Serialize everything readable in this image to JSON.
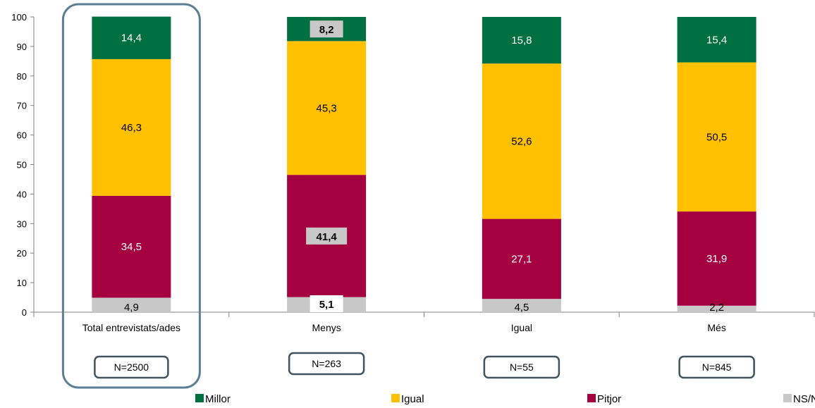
{
  "chart_data": {
    "type": "bar",
    "stacked": true,
    "categories": [
      "Total entrevistats/ades",
      "Menys",
      "Igual",
      "Més"
    ],
    "series": [
      {
        "name": "NS/NC",
        "color": "#c8c8c8",
        "values": [
          4.9,
          5.1,
          4.5,
          2.2
        ],
        "labels": [
          "4,9",
          "5,1",
          "4,5",
          "2,2"
        ]
      },
      {
        "name": "Pitjor",
        "color": "#a50040",
        "values": [
          34.5,
          41.4,
          27.1,
          31.9
        ],
        "labels": [
          "34,5",
          "41,4",
          "27,1",
          "31,9"
        ]
      },
      {
        "name": "Igual",
        "color": "#ffc000",
        "values": [
          46.3,
          45.3,
          52.6,
          50.5
        ],
        "labels": [
          "46,3",
          "45,3",
          "52,6",
          "50,5"
        ]
      },
      {
        "name": "Millor",
        "color": "#007040",
        "values": [
          14.4,
          8.2,
          15.8,
          15.4
        ],
        "labels": [
          "14,4",
          "8,2",
          "15,8",
          "15,4"
        ]
      }
    ],
    "highlighted_labels": [
      {
        "category": 1,
        "series": "Millor"
      },
      {
        "category": 1,
        "series": "Pitjor"
      },
      {
        "category": 1,
        "series": "NS/NC"
      }
    ],
    "n_labels": [
      "N=2500",
      "N=263",
      "N=55",
      "N=845"
    ],
    "legend_order": [
      "Millor",
      "Igual",
      "Pitjor",
      "NS/NC"
    ],
    "legend_position": "bottom",
    "ylim": [
      0,
      100
    ],
    "yticks": [
      0,
      10,
      20,
      30,
      40,
      50,
      60,
      70,
      80,
      90,
      100
    ],
    "highlighted_category": 0,
    "grid": false,
    "title": "",
    "xlabel": "",
    "ylabel": ""
  },
  "colors": {
    "highlight_frame": "#5b7f95",
    "n_box_border": "#3f5360",
    "axis": "#808080"
  }
}
